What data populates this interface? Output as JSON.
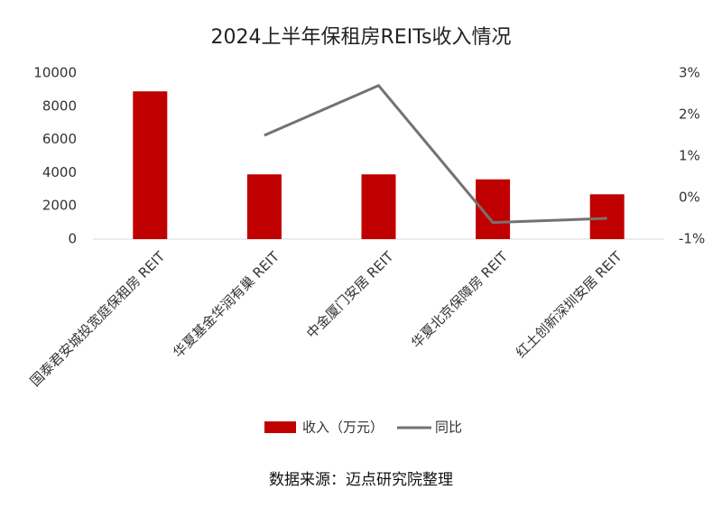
{
  "chart_data": {
    "type": "bar-line",
    "title": "2024上半年保租房REITs收入情况",
    "categories": [
      "国泰君安城投宽庭保租房 REIT",
      "华夏基金华润有巢 REIT",
      "中金厦门安居 REIT",
      "华夏北京保障房 REIT",
      "红土创新深圳安居 REIT"
    ],
    "series": [
      {
        "name": "收入（万元）",
        "color": "#c00000",
        "kind": "bar",
        "axis": "y",
        "values": [
          8900,
          3900,
          3900,
          3600,
          2700
        ]
      },
      {
        "name": "同比",
        "color": "#767171",
        "kind": "line",
        "axis": "y2",
        "values": [
          null,
          1.5,
          2.7,
          -0.6,
          -0.5
        ]
      }
    ],
    "ylim": [
      0,
      10000
    ],
    "yticks": [
      0,
      2000,
      4000,
      6000,
      8000,
      10000
    ],
    "y2lim": [
      -1,
      3
    ],
    "y2ticks": [
      {
        "value": -1,
        "label": "-1%"
      },
      {
        "value": 0,
        "label": "0%"
      },
      {
        "value": 1,
        "label": "1%"
      },
      {
        "value": 2,
        "label": "2%"
      },
      {
        "value": 3,
        "label": "3%"
      }
    ],
    "grid": false,
    "legend": "bottom",
    "source": "数据来源：迈点研究院整理"
  }
}
